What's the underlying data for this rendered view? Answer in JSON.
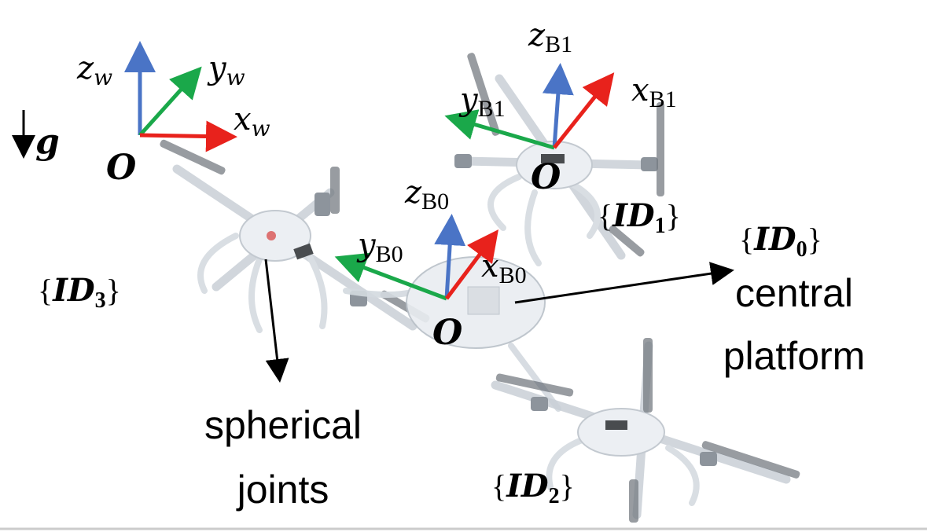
{
  "gravity": {
    "symbol": "g"
  },
  "world_frame": {
    "z": "z",
    "y": "y",
    "x": "x",
    "sub": "w",
    "origin": "O"
  },
  "body_frame_1": {
    "z": "z",
    "y": "y",
    "x": "x",
    "sub": "B1",
    "origin": "O"
  },
  "body_frame_0": {
    "z": "z",
    "y": "y",
    "x": "x",
    "sub": "B0",
    "origin": "O"
  },
  "ids": {
    "id0": {
      "text": "ID",
      "sub": "0"
    },
    "id1": {
      "text": "ID",
      "sub": "1"
    },
    "id2": {
      "text": "ID",
      "sub": "2"
    },
    "id3": {
      "text": "ID",
      "sub": "3"
    }
  },
  "labels": {
    "central_line1": "central",
    "central_line2": "platform",
    "joints_line1": "spherical",
    "joints_line2": "joints"
  },
  "colors": {
    "x_axis": "#e8221c",
    "y_axis": "#1aa84a",
    "z_axis": "#4a74c6"
  }
}
